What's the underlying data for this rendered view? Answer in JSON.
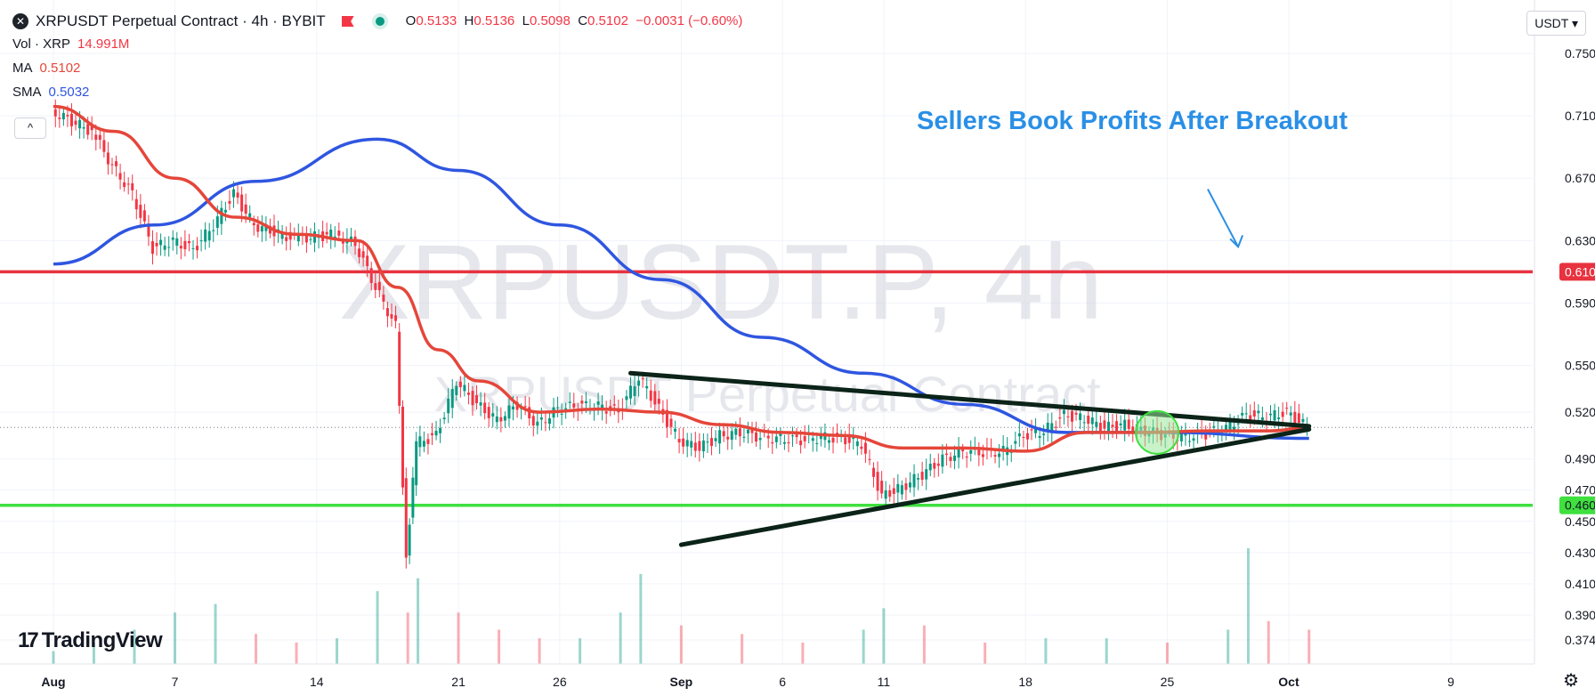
{
  "legend": {
    "symbol_title": "XRPUSDT Perpetual Contract · 4h · BYBIT",
    "open_key": "O",
    "open": "0.5133",
    "high_key": "H",
    "high": "0.5136",
    "low_key": "L",
    "low": "0.5098",
    "close_key": "C",
    "close": "0.5102",
    "change": "−0.0031 (−0.60%)",
    "vol_label": "Vol · XRP",
    "vol_value": "14.991M",
    "ma_label": "MA",
    "ma_value": "0.5102",
    "sma_label": "SMA",
    "sma_value": "0.5032",
    "logo_letter": "✕"
  },
  "watermark": {
    "main": "XRPUSDT.P, 4h",
    "sub": "XRPUSDT Perpetual Contract"
  },
  "currency": "USDT ▾",
  "collapse_label": "^",
  "brand": {
    "mark": "17",
    "name": "TradingView"
  },
  "colors": {
    "up": "#089981",
    "down": "#f23645",
    "ma": "#e5463a",
    "sma": "#2f56e0",
    "resistance": "#e8323f",
    "support": "#3fe03f",
    "trendline": "#0b2318",
    "annotation": "#2a8fe6",
    "circle_fill": "#9be79b"
  },
  "icons": [
    "symbol-logo-icon",
    "flag-icon",
    "status-dot-icon",
    "collapse-icon",
    "settings-icon"
  ],
  "chart_data": {
    "type": "candlestick",
    "title": "XRPUSDT Perpetual Contract · 4h · BYBIT",
    "x_ticks": [
      "Aug",
      "7",
      "14",
      "21",
      "26",
      "Sep",
      "6",
      "11",
      "18",
      "25",
      "Oct",
      "9"
    ],
    "x_tick_days": [
      0,
      6,
      13,
      20,
      25,
      31,
      36,
      41,
      48,
      55,
      61,
      69
    ],
    "y_ticks": [
      "0.7500",
      "0.7100",
      "0.6700",
      "0.6300",
      "0.5900",
      "0.5500",
      "0.5200",
      "0.4900",
      "0.4700",
      "0.4500",
      "0.4300",
      "0.4100",
      "0.3900",
      "0.3740"
    ],
    "ylim": [
      0.374,
      0.75
    ],
    "price_levels": [
      {
        "label": "0.6100",
        "value": 0.61,
        "color": "#e8323f"
      },
      {
        "label": "0.4603",
        "value": 0.4603,
        "color": "#3fe03f"
      }
    ],
    "last_price": 0.5102,
    "close_series": [
      {
        "day": 0,
        "close": 0.713
      },
      {
        "day": 2,
        "close": 0.7
      },
      {
        "day": 3,
        "close": 0.678
      },
      {
        "day": 4,
        "close": 0.66
      },
      {
        "day": 5,
        "close": 0.625
      },
      {
        "day": 6,
        "close": 0.63
      },
      {
        "day": 7,
        "close": 0.624
      },
      {
        "day": 8,
        "close": 0.64
      },
      {
        "day": 9,
        "close": 0.66
      },
      {
        "day": 10,
        "close": 0.64
      },
      {
        "day": 12,
        "close": 0.631
      },
      {
        "day": 14,
        "close": 0.634
      },
      {
        "day": 15,
        "close": 0.628
      },
      {
        "day": 16,
        "close": 0.6
      },
      {
        "day": 17,
        "close": 0.575
      },
      {
        "day": 17.5,
        "close": 0.425
      },
      {
        "day": 18,
        "close": 0.5
      },
      {
        "day": 19,
        "close": 0.505
      },
      {
        "day": 20,
        "close": 0.54
      },
      {
        "day": 21,
        "close": 0.525
      },
      {
        "day": 22,
        "close": 0.515
      },
      {
        "day": 23,
        "close": 0.525
      },
      {
        "day": 24,
        "close": 0.512
      },
      {
        "day": 25,
        "close": 0.522
      },
      {
        "day": 26,
        "close": 0.524
      },
      {
        "day": 27,
        "close": 0.524
      },
      {
        "day": 28,
        "close": 0.52
      },
      {
        "day": 29,
        "close": 0.543
      },
      {
        "day": 30,
        "close": 0.522
      },
      {
        "day": 31,
        "close": 0.502
      },
      {
        "day": 32,
        "close": 0.497
      },
      {
        "day": 33,
        "close": 0.505
      },
      {
        "day": 34,
        "close": 0.507
      },
      {
        "day": 35,
        "close": 0.504
      },
      {
        "day": 36,
        "close": 0.503
      },
      {
        "day": 37,
        "close": 0.502
      },
      {
        "day": 38,
        "close": 0.504
      },
      {
        "day": 39,
        "close": 0.503
      },
      {
        "day": 40,
        "close": 0.5
      },
      {
        "day": 41,
        "close": 0.466
      },
      {
        "day": 42,
        "close": 0.472
      },
      {
        "day": 43,
        "close": 0.48
      },
      {
        "day": 44,
        "close": 0.49
      },
      {
        "day": 45,
        "close": 0.495
      },
      {
        "day": 46,
        "close": 0.494
      },
      {
        "day": 47,
        "close": 0.495
      },
      {
        "day": 48,
        "close": 0.505
      },
      {
        "day": 49,
        "close": 0.508
      },
      {
        "day": 50,
        "close": 0.518
      },
      {
        "day": 51,
        "close": 0.516
      },
      {
        "day": 52,
        "close": 0.51
      },
      {
        "day": 53,
        "close": 0.512
      },
      {
        "day": 54,
        "close": 0.508
      },
      {
        "day": 55,
        "close": 0.505
      },
      {
        "day": 56,
        "close": 0.504
      },
      {
        "day": 57,
        "close": 0.506
      },
      {
        "day": 58,
        "close": 0.51
      },
      {
        "day": 59,
        "close": 0.518
      },
      {
        "day": 60,
        "close": 0.517
      },
      {
        "day": 61,
        "close": 0.52
      },
      {
        "day": 62,
        "close": 0.5102
      }
    ],
    "ma_series": [
      {
        "day": 0,
        "value": 0.716
      },
      {
        "day": 3,
        "value": 0.7
      },
      {
        "day": 6,
        "value": 0.67
      },
      {
        "day": 9,
        "value": 0.645
      },
      {
        "day": 12,
        "value": 0.634
      },
      {
        "day": 15,
        "value": 0.63
      },
      {
        "day": 17,
        "value": 0.6
      },
      {
        "day": 19,
        "value": 0.56
      },
      {
        "day": 21,
        "value": 0.54
      },
      {
        "day": 24,
        "value": 0.52
      },
      {
        "day": 27,
        "value": 0.522
      },
      {
        "day": 30,
        "value": 0.52
      },
      {
        "day": 33,
        "value": 0.512
      },
      {
        "day": 36,
        "value": 0.507
      },
      {
        "day": 39,
        "value": 0.505
      },
      {
        "day": 42,
        "value": 0.497
      },
      {
        "day": 45,
        "value": 0.497
      },
      {
        "day": 48,
        "value": 0.495
      },
      {
        "day": 51,
        "value": 0.507
      },
      {
        "day": 54,
        "value": 0.507
      },
      {
        "day": 57,
        "value": 0.508
      },
      {
        "day": 60,
        "value": 0.508
      },
      {
        "day": 62,
        "value": 0.5102
      }
    ],
    "sma_series": [
      {
        "day": 0,
        "value": 0.615
      },
      {
        "day": 5,
        "value": 0.64
      },
      {
        "day": 10,
        "value": 0.668
      },
      {
        "day": 16,
        "value": 0.695
      },
      {
        "day": 20,
        "value": 0.675
      },
      {
        "day": 25,
        "value": 0.64
      },
      {
        "day": 30,
        "value": 0.605
      },
      {
        "day": 35,
        "value": 0.568
      },
      {
        "day": 40,
        "value": 0.545
      },
      {
        "day": 45,
        "value": 0.525
      },
      {
        "day": 50,
        "value": 0.507
      },
      {
        "day": 55,
        "value": 0.507
      },
      {
        "day": 62,
        "value": 0.5032
      }
    ],
    "volume_series": [
      {
        "day": 0,
        "vol": 3
      },
      {
        "day": 2,
        "vol": 5
      },
      {
        "day": 4,
        "vol": 8
      },
      {
        "day": 6,
        "vol": 12
      },
      {
        "day": 8,
        "vol": 14
      },
      {
        "day": 10,
        "vol": 7
      },
      {
        "day": 12,
        "vol": 5
      },
      {
        "day": 14,
        "vol": 6
      },
      {
        "day": 16,
        "vol": 17
      },
      {
        "day": 17.5,
        "vol": 12
      },
      {
        "day": 18,
        "vol": 20
      },
      {
        "day": 20,
        "vol": 12
      },
      {
        "day": 22,
        "vol": 8
      },
      {
        "day": 24,
        "vol": 6
      },
      {
        "day": 26,
        "vol": 6
      },
      {
        "day": 28,
        "vol": 12
      },
      {
        "day": 29,
        "vol": 21
      },
      {
        "day": 31,
        "vol": 9
      },
      {
        "day": 34,
        "vol": 7
      },
      {
        "day": 37,
        "vol": 5
      },
      {
        "day": 40,
        "vol": 8
      },
      {
        "day": 41,
        "vol": 13
      },
      {
        "day": 43,
        "vol": 9
      },
      {
        "day": 46,
        "vol": 5
      },
      {
        "day": 49,
        "vol": 6
      },
      {
        "day": 52,
        "vol": 6
      },
      {
        "day": 55,
        "vol": 5
      },
      {
        "day": 58,
        "vol": 8
      },
      {
        "day": 59,
        "vol": 27
      },
      {
        "day": 60,
        "vol": 10
      },
      {
        "day": 62,
        "vol": 8
      }
    ],
    "trendlines": [
      {
        "name": "upper",
        "from": {
          "day": 28.5,
          "price": 0.545
        },
        "to": {
          "day": 62,
          "price": 0.511
        }
      },
      {
        "name": "lower",
        "from": {
          "day": 31,
          "price": 0.435
        },
        "to": {
          "day": 62,
          "price": 0.509
        }
      }
    ],
    "highlight": {
      "day": 54.5,
      "price": 0.507
    },
    "annotation": {
      "text": "Sellers Book Profits After Breakout",
      "arrow_from": {
        "day": 57,
        "price": 0.663
      },
      "arrow_to": {
        "day": 58.5,
        "price": 0.626
      }
    }
  }
}
